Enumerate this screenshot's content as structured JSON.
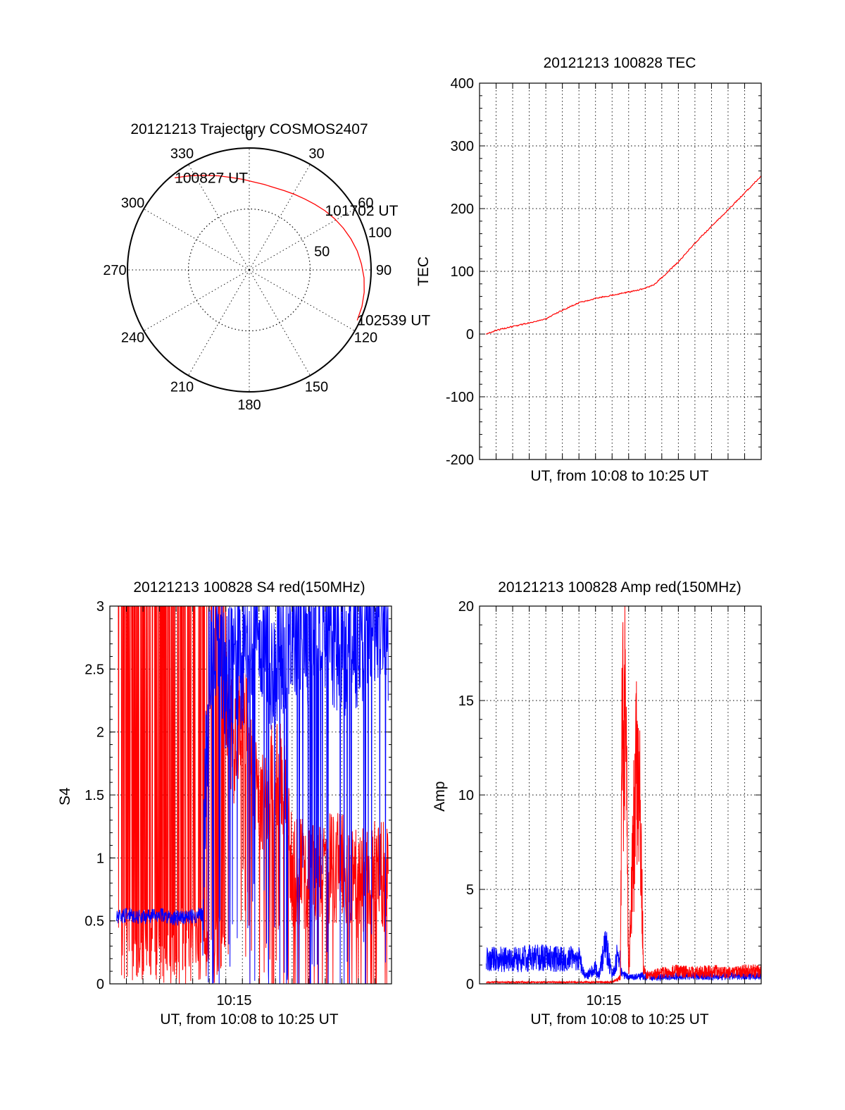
{
  "chart_data": [
    {
      "type": "polar",
      "title": "20121213 Trajectory COSMOS2407",
      "angle_labels": [
        "0",
        "30",
        "60",
        "90",
        "120",
        "150",
        "180",
        "210",
        "240",
        "270",
        "300",
        "330"
      ],
      "ring_labels": [
        "50",
        "100"
      ],
      "max_zenith": 90,
      "trajectory": {
        "color": "#ff0000",
        "azimuth_deg": [
          -39,
          -32,
          -25,
          -18,
          -11,
          -4,
          3,
          10,
          17,
          24,
          31,
          38,
          45,
          52,
          59,
          66,
          73,
          80,
          87,
          94,
          101,
          108,
          115
        ],
        "zenith_deg": [
          87.5,
          82,
          77,
          73,
          69.5,
          67,
          65,
          64,
          63.5,
          64,
          65,
          66.5,
          68.5,
          71,
          73.5,
          76,
          78.5,
          81,
          83,
          85,
          86.5,
          87.5,
          88
        ]
      },
      "annotations": [
        {
          "text": "100827 UT",
          "azimuth_deg": -39,
          "zenith_deg": 87.5
        },
        {
          "text": "101702 UT",
          "azimuth_deg": 52,
          "zenith_deg": 71
        },
        {
          "text": "102539 UT",
          "azimuth_deg": 115,
          "zenith_deg": 88
        }
      ]
    },
    {
      "type": "line",
      "title": "20121213 100828 TEC",
      "xlabel": "UT, from 10:08 to 10:25 UT",
      "ylabel": "TEC",
      "xlim": [
        0,
        17
      ],
      "ylim": [
        -200,
        400
      ],
      "yticks": [
        -200,
        -100,
        0,
        100,
        200,
        300,
        400
      ],
      "xtick_labels": [],
      "series": [
        {
          "color": "#ff0000",
          "x": [
            0.4,
            1.0,
            2.0,
            3.0,
            4.0,
            5.0,
            6.0,
            7.0,
            8.0,
            9.0,
            10.0,
            10.5,
            11.0,
            12.0,
            13.0,
            14.0,
            15.0,
            16.0,
            17.0
          ],
          "y": [
            0,
            6,
            12,
            18,
            24,
            38,
            50,
            57,
            62,
            67,
            73,
            78,
            90,
            115,
            145,
            172,
            198,
            225,
            252
          ]
        }
      ]
    },
    {
      "type": "line",
      "title": "20121213 100828 S4 red(150MHz)",
      "xlabel": "UT, from 10:08 to 10:25 UT",
      "ylabel": "S4",
      "xlim": [
        0,
        17
      ],
      "ylim": [
        0,
        3
      ],
      "yticks": [
        0,
        0.5,
        1,
        1.5,
        2,
        2.5,
        3
      ],
      "ytick_labels": [
        "0",
        "0.5",
        "1",
        "1.5",
        "2",
        "2.5",
        "3"
      ],
      "xticks": [
        7.5
      ],
      "xtick_labels": [
        "10:15"
      ],
      "series": [
        {
          "color": "#ff0000",
          "x": [
            0.4,
            1.0,
            2.0,
            3.0,
            4.0,
            5.0,
            6.0,
            7.0,
            7.5,
            8.0,
            9.0,
            10.0,
            10.5,
            11.0,
            12.0,
            13.0,
            14.0,
            15.0,
            16.0,
            16.8
          ],
          "y": [
            3.0,
            3.0,
            3.0,
            3.0,
            3.0,
            3.0,
            3.0,
            2.3,
            1.8,
            2.2,
            1.4,
            1.7,
            1.6,
            0.9,
            0.85,
            0.9,
            0.95,
            0.8,
            0.85,
            0.85
          ]
        },
        {
          "color": "#0000ff",
          "x": [
            0.4,
            1.0,
            2.0,
            3.0,
            4.0,
            5.0,
            5.6,
            6.0,
            7.0,
            8.0,
            9.0,
            10.0,
            11.0,
            12.0,
            13.0,
            14.0,
            15.0,
            16.0,
            16.8
          ],
          "y": [
            0.52,
            0.55,
            0.53,
            0.55,
            0.52,
            0.54,
            0.55,
            2.8,
            2.4,
            2.6,
            2.9,
            2.5,
            2.9,
            2.8,
            2.9,
            2.7,
            2.8,
            2.9,
            2.8
          ]
        }
      ]
    },
    {
      "type": "line",
      "title": "20121213 100828 Amp red(150MHz)",
      "xlabel": "UT, from 10:08 to 10:25 UT",
      "ylabel": "Amp",
      "xlim": [
        0,
        17
      ],
      "ylim": [
        0,
        20
      ],
      "yticks": [
        0,
        5,
        10,
        15,
        20
      ],
      "xticks": [
        7.5
      ],
      "xtick_labels": [
        "10:15"
      ],
      "series": [
        {
          "color": "#0000ff",
          "x": [
            0.4,
            1.0,
            2.0,
            3.0,
            4.0,
            5.0,
            6.0,
            6.3,
            6.5,
            7.0,
            7.2,
            7.6,
            8.0,
            8.4,
            8.6,
            9.0,
            10.0,
            11.0,
            12.0,
            13.0,
            14.0,
            15.0,
            16.0,
            17.0
          ],
          "y": [
            1.5,
            1.6,
            1.5,
            1.6,
            1.6,
            1.5,
            1.6,
            0.6,
            0.5,
            1.0,
            0.5,
            2.5,
            0.6,
            2.0,
            0.6,
            0.4,
            0.5,
            0.4,
            0.5,
            0.5,
            0.5,
            0.5,
            0.5,
            0.5
          ]
        },
        {
          "color": "#ff0000",
          "x": [
            0.4,
            3.0,
            6.0,
            8.0,
            8.5,
            8.6,
            8.8,
            9.0,
            9.3,
            9.5,
            9.7,
            9.9,
            10.2,
            11.0,
            12.0,
            13.0,
            14.0,
            15.0,
            16.0,
            17.0
          ],
          "y": [
            0.1,
            0.1,
            0.1,
            0.1,
            0.4,
            14.5,
            17.5,
            0.5,
            9.0,
            15.0,
            10.0,
            0.8,
            0.5,
            0.7,
            0.8,
            0.7,
            0.8,
            0.7,
            0.8,
            0.8
          ]
        }
      ]
    }
  ]
}
